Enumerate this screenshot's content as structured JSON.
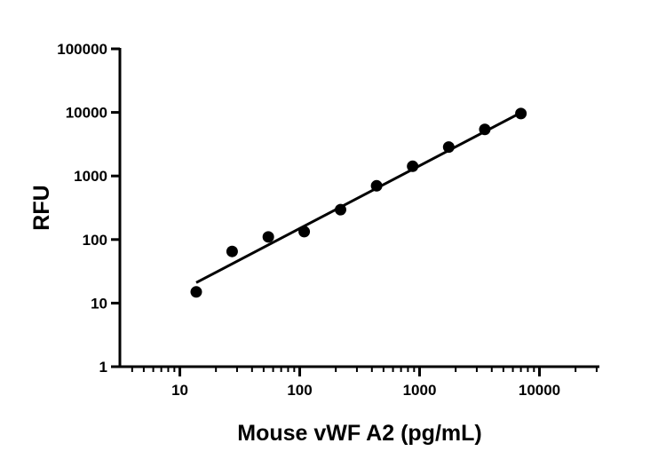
{
  "chart_data": {
    "type": "scatter",
    "title": "",
    "xlabel": "Mouse vWF A2 (pg/mL)",
    "ylabel": "RFU",
    "x_scale": "log",
    "y_scale": "log",
    "xlim": [
      3.16,
      31623
    ],
    "ylim": [
      1,
      100000
    ],
    "x_ticks": [
      10,
      100,
      1000,
      10000
    ],
    "x_tick_labels": [
      "10",
      "100",
      "1000",
      "10000"
    ],
    "y_ticks": [
      1,
      10,
      100,
      1000,
      10000,
      100000
    ],
    "y_tick_labels": [
      "1",
      "10",
      "100",
      "1000",
      "10000",
      "100000"
    ],
    "grid": false,
    "points": {
      "x": [
        13.7,
        27.3,
        54.7,
        109,
        219,
        438,
        875,
        1750,
        3500,
        7000
      ],
      "y": [
        15,
        65,
        110,
        133,
        295,
        700,
        1420,
        2850,
        5400,
        9600
      ]
    },
    "fit_line": {
      "x": [
        13.7,
        7000
      ],
      "y": [
        21,
        9900
      ]
    },
    "colors": {
      "marker": "#000000",
      "line": "#000000"
    }
  }
}
